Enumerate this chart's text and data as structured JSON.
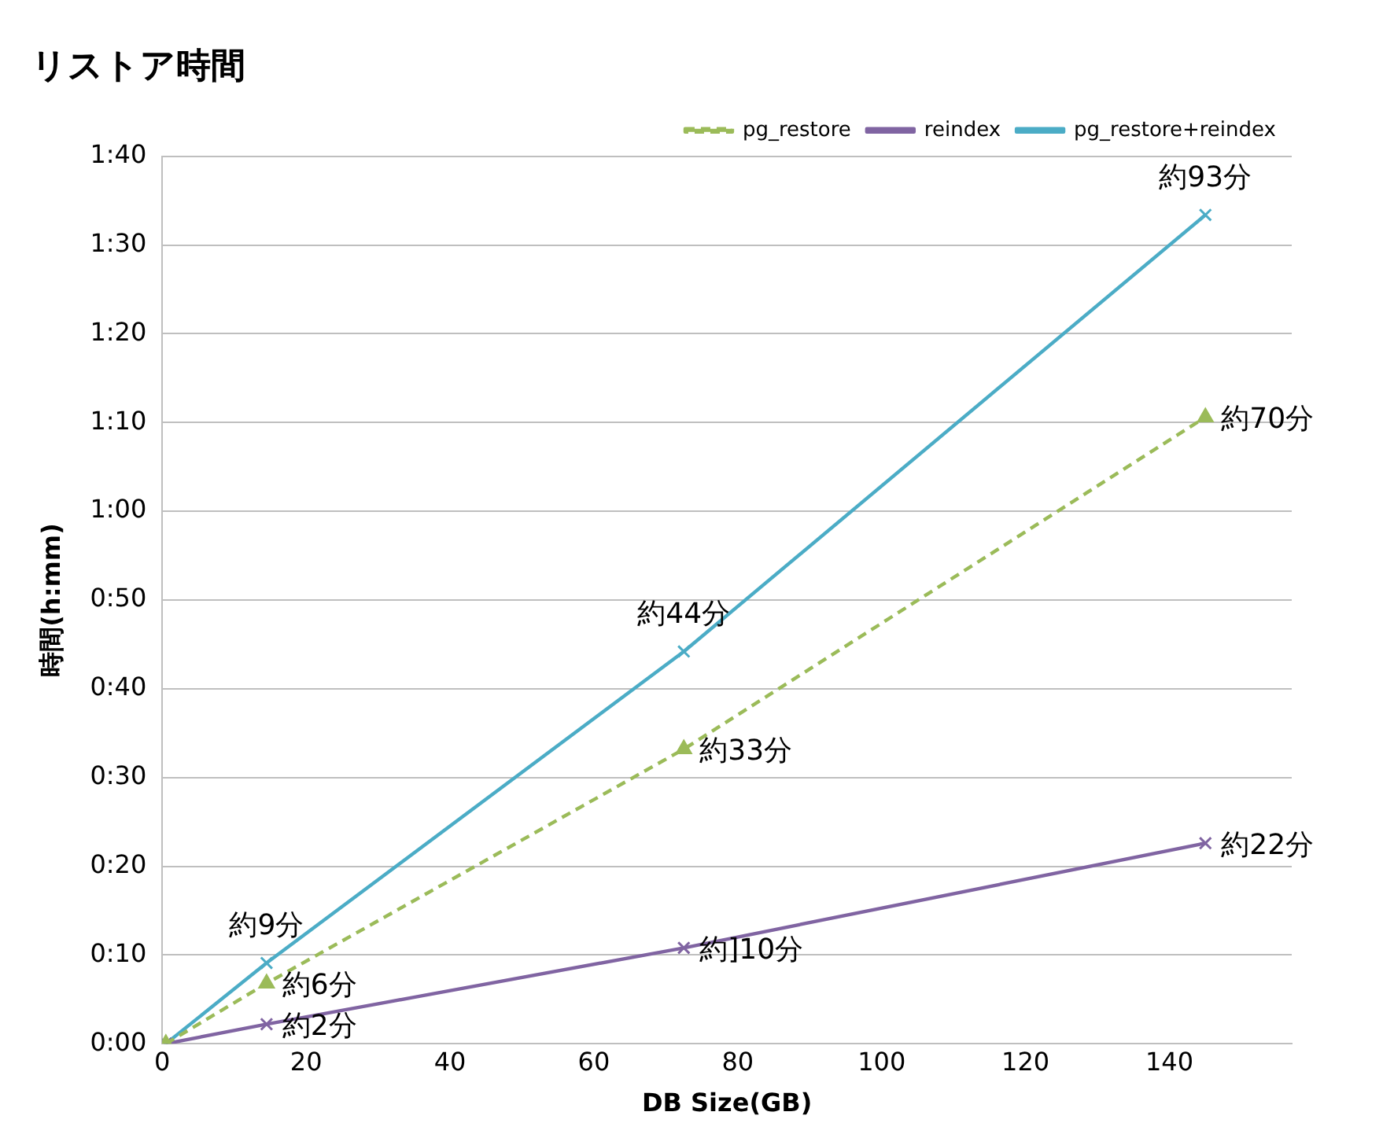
{
  "chart_data": {
    "type": "line",
    "title": "リストア時間",
    "xlabel": "DB Size(GB)",
    "ylabel": "時間(h:mm)",
    "xlim": [
      0,
      157
    ],
    "xticks": [
      0,
      20,
      40,
      60,
      80,
      100,
      120,
      140
    ],
    "ylim": [
      0,
      100
    ],
    "yticks": [
      {
        "value": 0,
        "label": "0:00"
      },
      {
        "value": 10,
        "label": "0:10"
      },
      {
        "value": 20,
        "label": "0:20"
      },
      {
        "value": 30,
        "label": "0:30"
      },
      {
        "value": 40,
        "label": "0:40"
      },
      {
        "value": 50,
        "label": "0:50"
      },
      {
        "value": 60,
        "label": "1:00"
      },
      {
        "value": 70,
        "label": "1:10"
      },
      {
        "value": 80,
        "label": "1:20"
      },
      {
        "value": 90,
        "label": "1:30"
      },
      {
        "value": 100,
        "label": "1:40"
      }
    ],
    "grid": "y",
    "legend": "top right",
    "x": [
      0.5,
      14.5,
      72.5,
      145
    ],
    "series": [
      {
        "name": "pg_restore",
        "color": "#9bbb59",
        "values": [
          0,
          6.8,
          33.2,
          70.6
        ],
        "marker": "triangle",
        "line_style": "dashed"
      },
      {
        "name": "reindex",
        "color": "#8064a2",
        "values": [
          0,
          2.2,
          10.8,
          22.6
        ],
        "marker": "cross",
        "line_style": "solid"
      },
      {
        "name": "pg_restore+reindex",
        "color": "#4bacc6",
        "values": [
          0,
          9.1,
          44.2,
          93.4
        ],
        "marker": "cross",
        "line_style": "solid"
      }
    ],
    "annotations": [
      {
        "text": "約9分",
        "x": 14.5,
        "y": 9.1
      },
      {
        "text": "約44分",
        "x": 72.5,
        "y": 44.2
      },
      {
        "text": "約93分",
        "x": 145,
        "y": 93.4
      },
      {
        "text": "約6分",
        "x": 14.5,
        "y": 6.8
      },
      {
        "text": "約33分",
        "x": 72.5,
        "y": 33.2
      },
      {
        "text": "約70分",
        "x": 145,
        "y": 70.6
      },
      {
        "text": "約2分",
        "x": 14.5,
        "y": 2.2
      },
      {
        "text": "約]10分",
        "x": 72.5,
        "y": 10.8
      },
      {
        "text": "約22分",
        "x": 145,
        "y": 22.6
      }
    ]
  }
}
